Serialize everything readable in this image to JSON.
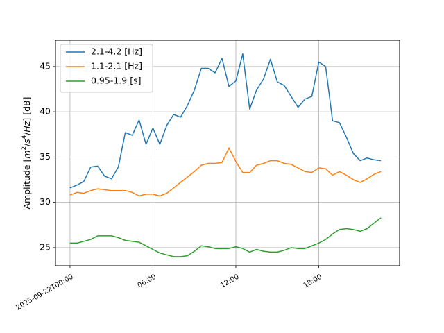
{
  "chart_data": {
    "type": "line",
    "title": "",
    "xlabel": "",
    "ylabel_parts": [
      "Amplitude [",
      "m",
      "2",
      "/",
      "s",
      "4",
      "/",
      "Hz",
      "] [dB]"
    ],
    "x_unit": "hours since 2025-09-22T00:00",
    "xlim": [
      -1.05,
      23.85
    ],
    "ylim": [
      23.0,
      47.9
    ],
    "xticks": [
      {
        "x": 0,
        "label": "2025-09-22T00:00"
      },
      {
        "x": 6,
        "label": "06:00"
      },
      {
        "x": 12,
        "label": "12:00"
      },
      {
        "x": 18,
        "label": "18:00"
      }
    ],
    "yticks": [
      25,
      30,
      35,
      40,
      45
    ],
    "grid": true,
    "legend_position": "top-left",
    "x": [
      0,
      0.5,
      1,
      1.5,
      2,
      2.5,
      3,
      3.5,
      4,
      4.5,
      5,
      5.5,
      6,
      6.5,
      7,
      7.5,
      8,
      8.5,
      9,
      9.5,
      10,
      10.5,
      11,
      11.5,
      12,
      12.5,
      13,
      13.5,
      14,
      14.5,
      15,
      15.5,
      16,
      16.5,
      17,
      17.5,
      18,
      18.5,
      19,
      19.5,
      20,
      20.5,
      21,
      21.5,
      22,
      22.5
    ],
    "series": [
      {
        "name": "2.1-4.2 [Hz]",
        "color": "#1f77b4",
        "values": [
          31.6,
          31.9,
          32.3,
          33.9,
          34.0,
          32.9,
          32.6,
          33.9,
          37.7,
          37.4,
          39.1,
          36.4,
          38.2,
          36.4,
          38.5,
          39.7,
          39.4,
          40.7,
          42.4,
          44.8,
          44.8,
          44.3,
          45.9,
          42.8,
          43.4,
          46.4,
          40.3,
          42.4,
          43.6,
          45.8,
          43.3,
          42.9,
          41.7,
          40.5,
          41.4,
          41.7,
          45.5,
          45.0,
          39.0,
          38.8,
          37.2,
          35.4,
          34.6,
          34.9,
          34.7,
          34.6
        ]
      },
      {
        "name": "1.1-2.1 [Hz]",
        "color": "#ff7f0e",
        "values": [
          30.8,
          31.1,
          31.0,
          31.3,
          31.5,
          31.4,
          31.3,
          31.3,
          31.3,
          31.1,
          30.7,
          30.9,
          30.9,
          30.7,
          31.0,
          31.6,
          32.2,
          32.8,
          33.4,
          34.1,
          34.3,
          34.3,
          34.4,
          36.0,
          34.5,
          33.3,
          33.3,
          34.1,
          34.3,
          34.6,
          34.6,
          34.3,
          34.2,
          33.8,
          33.4,
          33.3,
          33.8,
          33.7,
          33.0,
          33.4,
          33.0,
          32.5,
          32.2,
          32.6,
          33.1,
          33.4
        ]
      },
      {
        "name": "0.95-1.9 [s]",
        "color": "#2ca02c",
        "values": [
          25.5,
          25.5,
          25.7,
          25.9,
          26.3,
          26.3,
          26.3,
          26.1,
          25.8,
          25.7,
          25.6,
          25.2,
          24.8,
          24.4,
          24.2,
          24.0,
          24.0,
          24.1,
          24.6,
          25.2,
          25.1,
          24.9,
          24.9,
          24.9,
          25.1,
          24.9,
          24.5,
          24.8,
          24.6,
          24.5,
          24.5,
          24.7,
          25.0,
          24.9,
          24.9,
          25.2,
          25.5,
          25.9,
          26.5,
          27.0,
          27.1,
          27.0,
          26.8,
          27.1,
          27.7,
          28.3
        ]
      }
    ]
  }
}
